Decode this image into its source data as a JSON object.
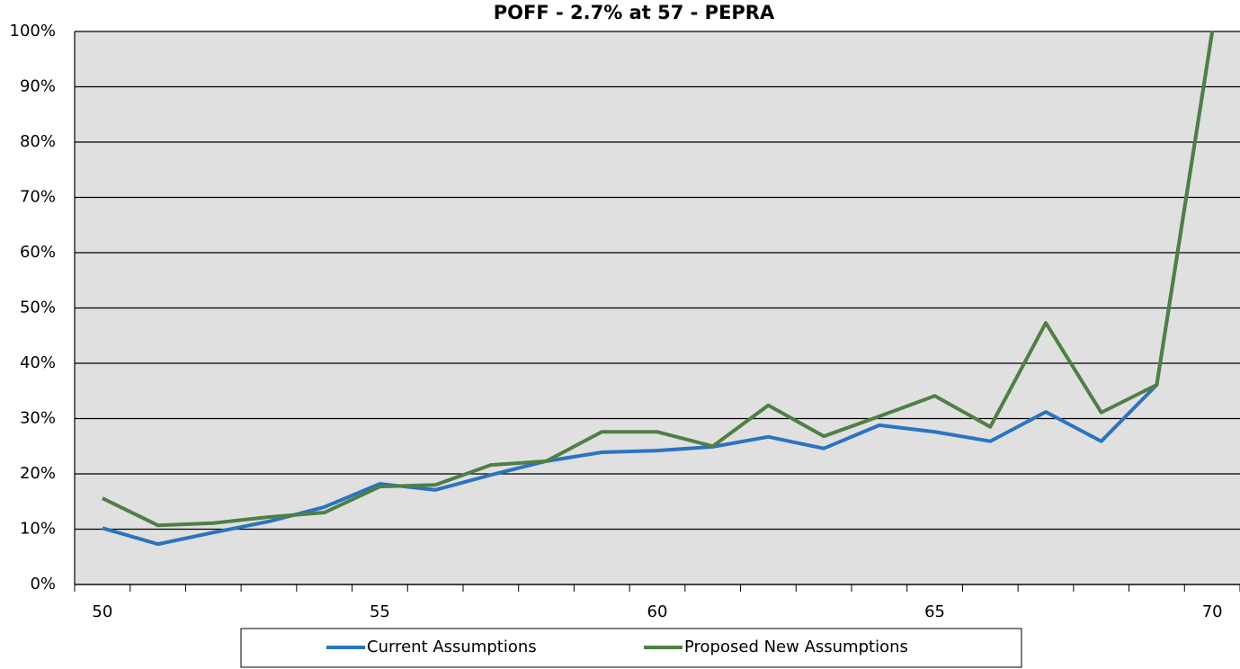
{
  "chart_data": {
    "type": "line",
    "title": "POFF - 2.7% at 57 - PEPRA",
    "x": [
      50,
      51,
      52,
      53,
      54,
      55,
      56,
      57,
      58,
      59,
      60,
      61,
      62,
      63,
      64,
      65,
      66,
      67,
      68,
      69,
      70
    ],
    "series": [
      {
        "name": "Current Assumptions",
        "color": "#2a74c0",
        "values": [
          10.2,
          7.3,
          9.4,
          11.4,
          14,
          18.2,
          17.1,
          19.8,
          22.3,
          23.9,
          24.2,
          24.9,
          26.7,
          24.6,
          28.8,
          27.6,
          25.9,
          31.2,
          25.9,
          36.1,
          100
        ]
      },
      {
        "name": "Proposed New Assumptions",
        "color": "#4f7f45",
        "values": [
          15.6,
          10.7,
          11.1,
          12.2,
          13,
          17.7,
          18,
          21.6,
          22.3,
          27.6,
          27.6,
          25,
          32.4,
          26.8,
          30.4,
          34.1,
          28.5,
          47.3,
          31.1,
          36.1,
          100
        ]
      }
    ],
    "xlim": [
      49.5,
      70.5
    ],
    "xticks": [
      50,
      55,
      60,
      65,
      70
    ],
    "xminorticks": [
      49.5,
      50.5,
      51.5,
      52.5,
      53.5,
      54.5,
      55.5,
      56.5,
      57.5,
      58.5,
      59.5,
      60.5,
      61.5,
      62.5,
      63.5,
      64.5,
      65.5,
      66.5,
      67.5,
      68.5,
      69.5,
      70.5
    ],
    "ylim": [
      0,
      100
    ],
    "yticks": [
      {
        "value": 0,
        "label": "0%"
      },
      {
        "value": 10,
        "label": "10%"
      },
      {
        "value": 20,
        "label": "20%"
      },
      {
        "value": 30,
        "label": "30%"
      },
      {
        "value": 40,
        "label": "40%"
      },
      {
        "value": 50,
        "label": "50%"
      },
      {
        "value": 60,
        "label": "60%"
      },
      {
        "value": 70,
        "label": "70%"
      },
      {
        "value": 80,
        "label": "80%"
      },
      {
        "value": 90,
        "label": "90%"
      },
      {
        "value": 100,
        "label": "100%"
      }
    ],
    "grid": true,
    "legend": "bottom"
  }
}
